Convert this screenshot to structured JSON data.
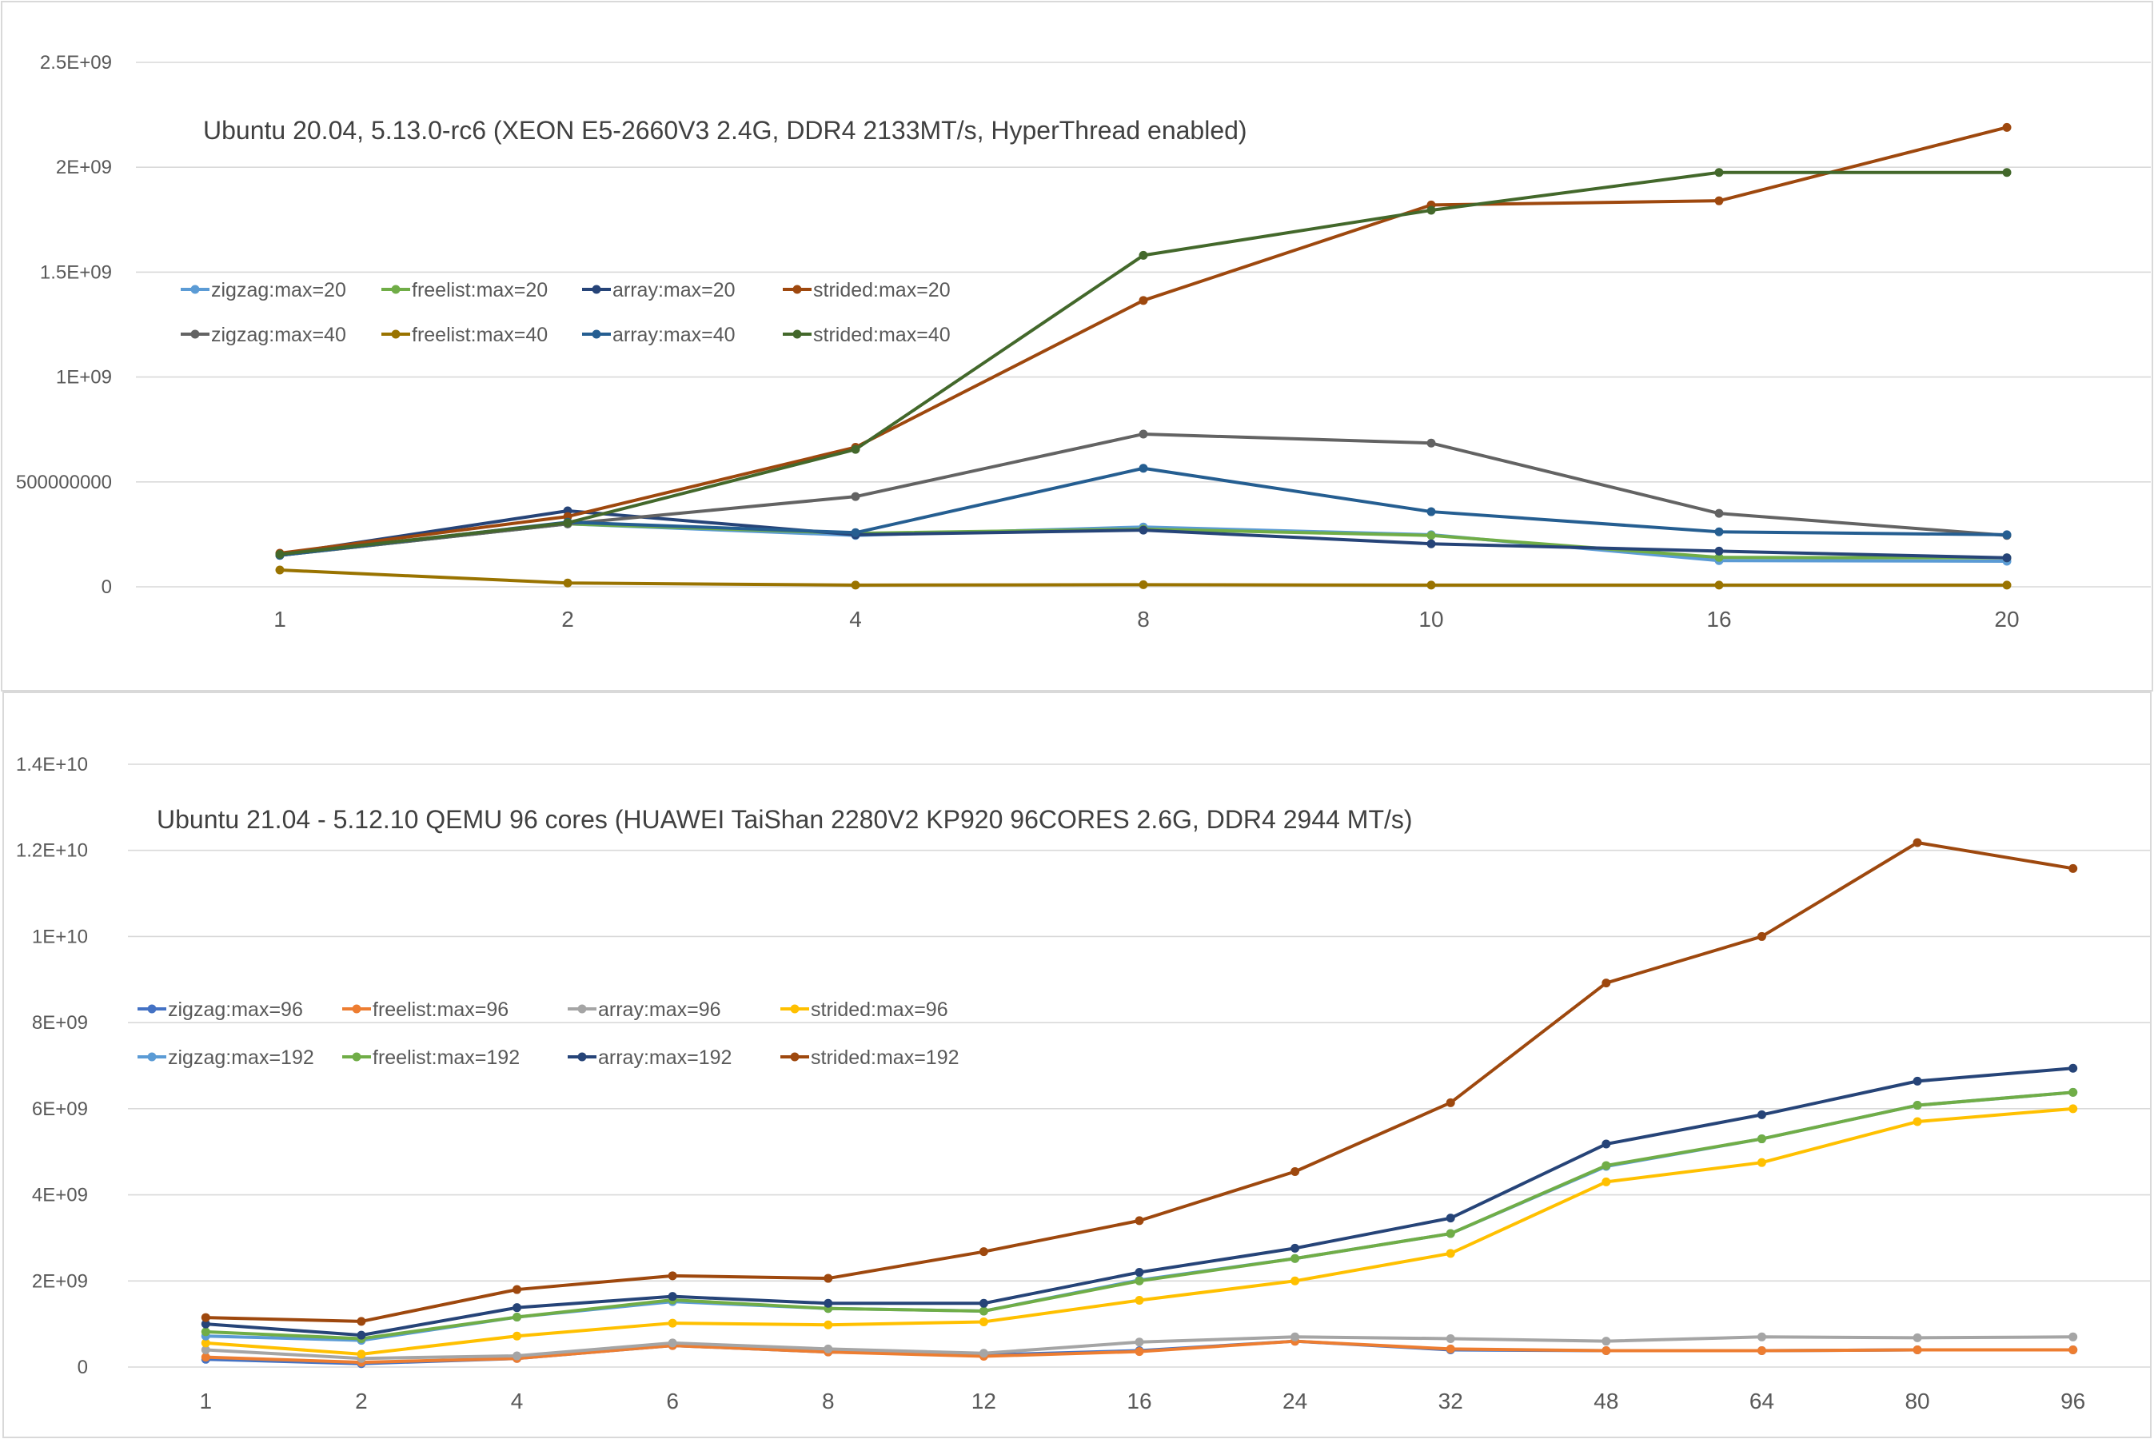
{
  "chart_data": [
    {
      "type": "line",
      "title": "Ubuntu 20.04, 5.13.0-rc6 (XEON E5-2660V3 2.4G, DDR4 2133MT/s, HyperThread enabled)",
      "categories": [
        "1",
        "2",
        "4",
        "8",
        "10",
        "16",
        "20"
      ],
      "y_tick_labels": [
        "0",
        "500000000",
        "1E+09",
        "1.5E+09",
        "2E+09",
        "2.5E+09"
      ],
      "ylim": [
        0,
        2500000000
      ],
      "grid": true,
      "legend_position": "top-left",
      "series": [
        {
          "name": "zigzag:max=20",
          "color": "#5B9BD5",
          "values": [
            150000000,
            300000000,
            245000000,
            285000000,
            248000000,
            125000000,
            122000000
          ]
        },
        {
          "name": "freelist:max=20",
          "color": "#70AD47",
          "values": [
            150000000,
            300000000,
            255000000,
            275000000,
            245000000,
            140000000,
            138000000
          ]
        },
        {
          "name": "array:max=20",
          "color": "#264478",
          "values": [
            155000000,
            362000000,
            248000000,
            270000000,
            205000000,
            170000000,
            138000000
          ]
        },
        {
          "name": "strided:max=20",
          "color": "#9E480E",
          "values": [
            160000000,
            335000000,
            665000000,
            1365000000,
            1820000000,
            1840000000,
            2190000000
          ]
        },
        {
          "name": "zigzag:max=40",
          "color": "#636363",
          "values": [
            150000000,
            300000000,
            430000000,
            728000000,
            685000000,
            350000000,
            245000000
          ]
        },
        {
          "name": "freelist:max=40",
          "color": "#997300",
          "values": [
            80000000,
            18000000,
            8000000,
            10000000,
            8000000,
            8000000,
            8000000
          ]
        },
        {
          "name": "array:max=40",
          "color": "#255E91",
          "values": [
            150000000,
            308000000,
            258000000,
            565000000,
            358000000,
            262000000,
            248000000
          ]
        },
        {
          "name": "strided:max=40",
          "color": "#43682B",
          "values": [
            155000000,
            305000000,
            655000000,
            1580000000,
            1795000000,
            1975000000,
            1975000000
          ]
        }
      ]
    },
    {
      "type": "line",
      "title": "Ubuntu 21.04 - 5.12.10 QEMU 96 cores (HUAWEI TaiShan 2280V2  KP920 96CORES 2.6G, DDR4 2944 MT/s)",
      "categories": [
        "1",
        "2",
        "4",
        "6",
        "8",
        "12",
        "16",
        "24",
        "32",
        "48",
        "64",
        "80",
        "96"
      ],
      "y_tick_labels": [
        "0",
        "2E+09",
        "4E+09",
        "6E+09",
        "8E+09",
        "1E+10",
        "1.2E+10",
        "1.4E+10"
      ],
      "ylim": [
        0,
        14000000000
      ],
      "grid": true,
      "legend_position": "top-left",
      "series": [
        {
          "name": "zigzag:max=96",
          "color": "#4472C4",
          "values": [
            180000000,
            80000000,
            200000000,
            500000000,
            350000000,
            280000000,
            380000000,
            600000000,
            400000000,
            380000000,
            380000000,
            400000000,
            400000000
          ]
        },
        {
          "name": "freelist:max=96",
          "color": "#ED7D31",
          "values": [
            230000000,
            110000000,
            200000000,
            500000000,
            350000000,
            250000000,
            360000000,
            600000000,
            420000000,
            380000000,
            380000000,
            400000000,
            400000000
          ]
        },
        {
          "name": "array:max=96",
          "color": "#A5A5A5",
          "values": [
            400000000,
            200000000,
            260000000,
            560000000,
            420000000,
            320000000,
            580000000,
            700000000,
            660000000,
            600000000,
            700000000,
            680000000,
            700000000
          ]
        },
        {
          "name": "strided:max=96",
          "color": "#FFC000",
          "values": [
            560000000,
            300000000,
            720000000,
            1020000000,
            980000000,
            1050000000,
            1550000000,
            2000000000,
            2640000000,
            4300000000,
            4750000000,
            5700000000,
            6000000000
          ]
        },
        {
          "name": "zigzag:max=192",
          "color": "#5B9BD5",
          "values": [
            720000000,
            620000000,
            1160000000,
            1520000000,
            1360000000,
            1300000000,
            2020000000,
            2520000000,
            3100000000,
            4660000000,
            5300000000,
            6080000000,
            6380000000
          ]
        },
        {
          "name": "freelist:max=192",
          "color": "#70AD47",
          "values": [
            820000000,
            660000000,
            1160000000,
            1560000000,
            1360000000,
            1300000000,
            2000000000,
            2520000000,
            3100000000,
            4680000000,
            5300000000,
            6080000000,
            6380000000
          ]
        },
        {
          "name": "array:max=192",
          "color": "#264478",
          "values": [
            1000000000,
            740000000,
            1380000000,
            1640000000,
            1480000000,
            1480000000,
            2200000000,
            2760000000,
            3460000000,
            5180000000,
            5860000000,
            6640000000,
            6940000000
          ]
        },
        {
          "name": "strided:max=192",
          "color": "#9E480E",
          "values": [
            1150000000,
            1060000000,
            1800000000,
            2120000000,
            2060000000,
            2680000000,
            3400000000,
            4540000000,
            6140000000,
            8920000000,
            10000000000,
            12180000000,
            11580000000
          ]
        }
      ]
    }
  ]
}
